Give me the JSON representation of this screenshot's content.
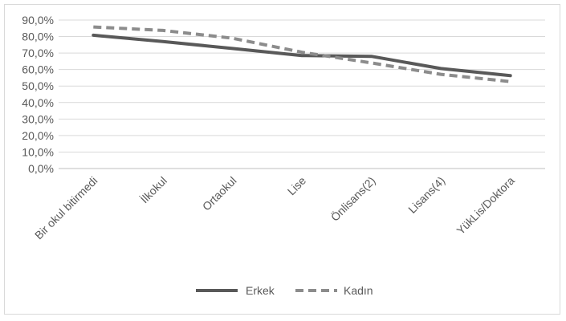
{
  "chart_data": {
    "type": "line",
    "categories": [
      "Bir okul bitirmedi",
      "İlkokul",
      "Ortaokul",
      "Lise",
      "Önlisans(2)",
      "Lisans(4)",
      "YükLis/Doktora"
    ],
    "series": [
      {
        "name": "Erkek",
        "values": [
          80.8,
          77.0,
          72.8,
          68.5,
          68.0,
          60.6,
          56.3
        ],
        "color": "#595959",
        "dash": "solid"
      },
      {
        "name": "Kadın",
        "values": [
          85.8,
          83.7,
          79.0,
          70.5,
          64.0,
          57.1,
          52.7
        ],
        "color": "#8c8c8c",
        "dash": "dashed"
      }
    ],
    "yticks": [
      "0,0%",
      "10,0%",
      "20,0%",
      "30,0%",
      "40,0%",
      "50,0%",
      "60,0%",
      "70,0%",
      "80,0%",
      "90,0%"
    ],
    "ylim": [
      0,
      90
    ],
    "grid": true,
    "legend_position": "bottom",
    "title": "",
    "xlabel": "",
    "ylabel": ""
  }
}
